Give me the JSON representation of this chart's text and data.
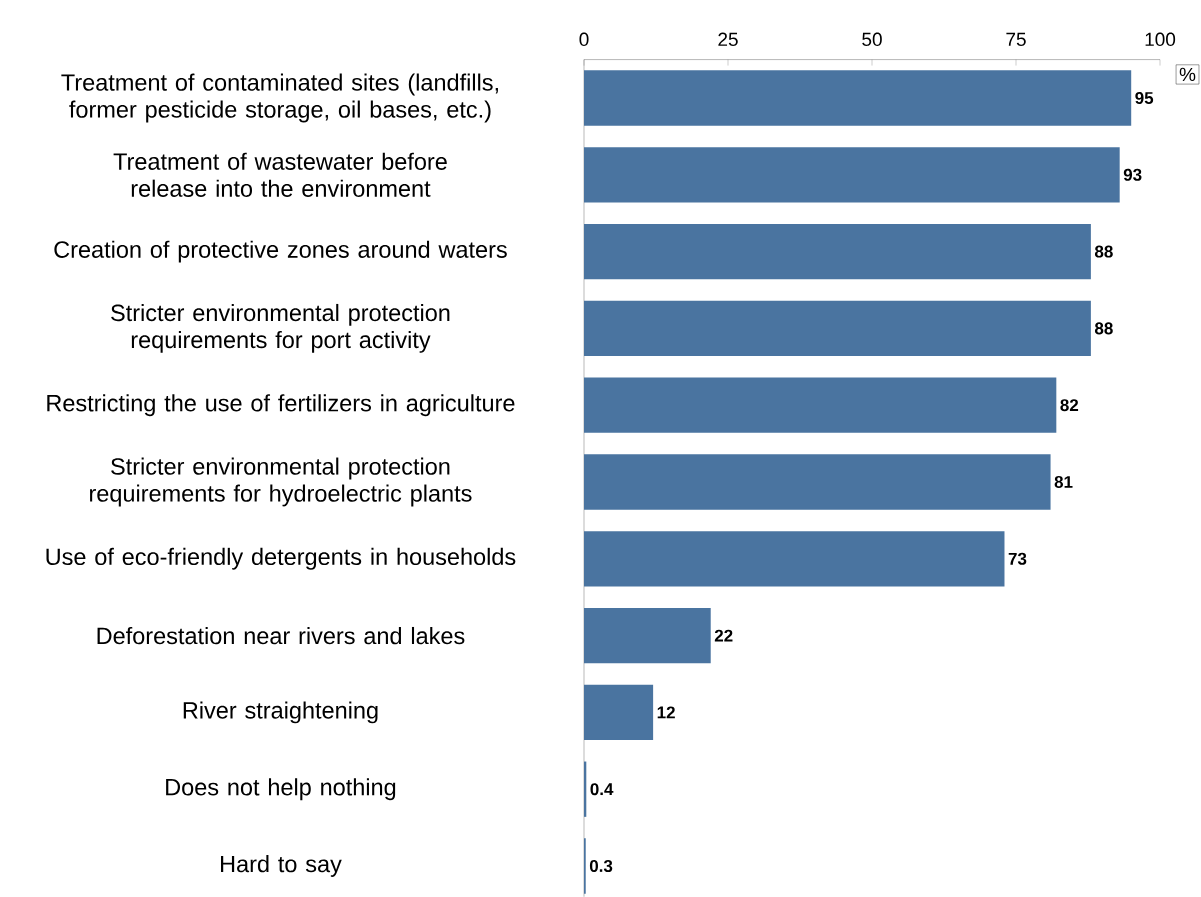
{
  "chart_data": {
    "type": "bar",
    "orientation": "horizontal",
    "xlabel": "%",
    "categories": [
      "Treatment of contaminated sites (landfills, former pesticide storage, oil bases, etc.)",
      "Treatment of wastewater before release into the environment",
      "Creation of protective zones around waters",
      "Stricter environmental protection requirements for port activity",
      "Restricting the use of fertilizers in agriculture",
      "Stricter environmental protection requirements for hydroelectric plants",
      "Use of eco-friendly detergents in households",
      "Deforestation near rivers and lakes",
      "River straightening",
      "Does not help nothing",
      "Hard to say"
    ],
    "values": [
      95,
      93,
      88,
      88,
      82,
      81,
      73,
      22,
      12,
      0.4,
      0.3
    ],
    "value_labels": [
      "95",
      "93",
      "88",
      "88",
      "82",
      "81",
      "73",
      "22",
      "12",
      "0.4",
      "0.3"
    ],
    "color": "#4a74a0",
    "xlim": [
      0,
      100
    ],
    "xticks": [
      0,
      25,
      50,
      75,
      100
    ],
    "grid": false
  }
}
